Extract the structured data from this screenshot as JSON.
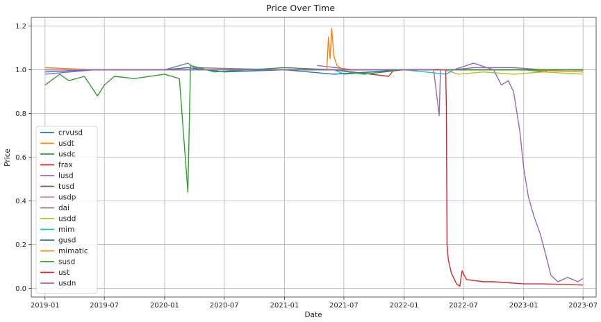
{
  "chart_data": {
    "type": "line",
    "title": "Price Over Time",
    "xlabel": "Date",
    "ylabel": "Price",
    "xlim": [
      "2018-11-20",
      "2023-08-10"
    ],
    "ylim": [
      -0.04,
      1.24
    ],
    "grid": true,
    "legend_position": "center-left",
    "x_ticks": [
      "2019-01",
      "2019-07",
      "2020-01",
      "2020-07",
      "2021-01",
      "2021-07",
      "2022-01",
      "2022-07",
      "2023-01",
      "2023-07"
    ],
    "y_ticks": [
      0.0,
      0.2,
      0.4,
      0.6,
      0.8,
      1.0,
      1.2
    ],
    "series": [
      {
        "name": "crvusd",
        "color": "#1f77b4",
        "points": [
          [
            "2023-05-15",
            1.0
          ],
          [
            "2023-07-01",
            0.999
          ]
        ]
      },
      {
        "name": "usdt",
        "color": "#ff7f0e",
        "points": [
          [
            "2019-01-01",
            1.01
          ],
          [
            "2019-06-01",
            1.0
          ],
          [
            "2020-01-01",
            1.0
          ],
          [
            "2020-06-01",
            1.0
          ],
          [
            "2021-01-01",
            1.0
          ],
          [
            "2021-06-01",
            1.0
          ],
          [
            "2022-01-01",
            1.0
          ],
          [
            "2022-06-01",
            1.0
          ],
          [
            "2023-01-01",
            1.0
          ],
          [
            "2023-07-01",
            1.0
          ]
        ]
      },
      {
        "name": "usdc",
        "color": "#2ca02c",
        "points": [
          [
            "2019-01-01",
            1.0
          ],
          [
            "2020-01-01",
            1.0
          ],
          [
            "2021-01-01",
            1.0
          ],
          [
            "2022-01-01",
            1.0
          ],
          [
            "2023-01-01",
            1.0
          ],
          [
            "2023-03-10",
            0.99
          ],
          [
            "2023-03-15",
            1.0
          ],
          [
            "2023-07-01",
            1.0
          ]
        ]
      },
      {
        "name": "frax",
        "color": "#d62728",
        "points": [
          [
            "2021-01-01",
            1.0
          ],
          [
            "2021-06-01",
            1.0
          ],
          [
            "2021-11-15",
            0.97
          ],
          [
            "2021-12-01",
            1.0
          ],
          [
            "2022-06-01",
            1.0
          ],
          [
            "2023-01-01",
            1.0
          ],
          [
            "2023-07-01",
            0.999
          ]
        ]
      },
      {
        "name": "lusd",
        "color": "#9467bd",
        "points": [
          [
            "2021-04-10",
            1.02
          ],
          [
            "2021-08-01",
            1.0
          ],
          [
            "2022-01-01",
            1.0
          ],
          [
            "2022-06-01",
            1.0
          ],
          [
            "2022-08-01",
            1.01
          ],
          [
            "2022-12-01",
            1.01
          ],
          [
            "2023-03-01",
            1.0
          ],
          [
            "2023-07-01",
            0.999
          ]
        ]
      },
      {
        "name": "tusd",
        "color": "#8c564b",
        "points": [
          [
            "2019-01-01",
            1.0
          ],
          [
            "2020-01-01",
            1.0
          ],
          [
            "2021-01-01",
            1.0
          ],
          [
            "2022-01-01",
            1.0
          ],
          [
            "2023-01-01",
            1.0
          ],
          [
            "2023-07-01",
            1.0
          ]
        ]
      },
      {
        "name": "usdp",
        "color": "#e377c2",
        "points": [
          [
            "2019-01-01",
            1.0
          ],
          [
            "2020-01-01",
            1.0
          ],
          [
            "2021-01-01",
            1.0
          ],
          [
            "2022-01-01",
            1.0
          ],
          [
            "2023-01-01",
            1.0
          ],
          [
            "2023-07-01",
            1.0
          ]
        ]
      },
      {
        "name": "dai",
        "color": "#7f7f7f",
        "points": [
          [
            "2020-01-01",
            1.0
          ],
          [
            "2020-03-12",
            1.03
          ],
          [
            "2020-04-01",
            1.01
          ],
          [
            "2021-01-01",
            1.0
          ],
          [
            "2022-01-01",
            1.0
          ],
          [
            "2023-01-01",
            1.0
          ],
          [
            "2023-07-01",
            1.0
          ]
        ]
      },
      {
        "name": "usdd",
        "color": "#bcbd22",
        "points": [
          [
            "2022-05-05",
            1.0
          ],
          [
            "2022-06-15",
            0.98
          ],
          [
            "2022-09-01",
            0.99
          ],
          [
            "2022-12-01",
            0.98
          ],
          [
            "2023-03-01",
            0.99
          ],
          [
            "2023-07-01",
            0.98
          ]
        ]
      },
      {
        "name": "mim",
        "color": "#17becf",
        "points": [
          [
            "2021-06-01",
            1.0
          ],
          [
            "2021-07-01",
            0.98
          ],
          [
            "2022-01-01",
            1.0
          ],
          [
            "2022-05-10",
            0.98
          ],
          [
            "2022-06-01",
            1.0
          ],
          [
            "2023-01-01",
            1.0
          ],
          [
            "2023-07-01",
            1.0
          ]
        ]
      },
      {
        "name": "gusd",
        "color": "#1f77b4",
        "points": [
          [
            "2019-01-01",
            0.99
          ],
          [
            "2019-06-01",
            1.0
          ],
          [
            "2020-01-01",
            1.0
          ],
          [
            "2020-03-12",
            1.01
          ],
          [
            "2020-07-01",
            0.99
          ],
          [
            "2021-01-01",
            1.0
          ],
          [
            "2021-06-01",
            0.98
          ],
          [
            "2022-01-01",
            1.0
          ],
          [
            "2023-01-01",
            1.0
          ],
          [
            "2023-07-01",
            1.0
          ]
        ]
      },
      {
        "name": "mimatic",
        "color": "#ff7f0e",
        "points": [
          [
            "2021-05-10",
            1.0
          ],
          [
            "2021-05-15",
            1.15
          ],
          [
            "2021-05-20",
            1.05
          ],
          [
            "2021-05-25",
            1.19
          ],
          [
            "2021-06-01",
            1.06
          ],
          [
            "2021-06-10",
            1.02
          ],
          [
            "2021-07-01",
            1.0
          ],
          [
            "2022-01-01",
            1.0
          ],
          [
            "2023-01-01",
            1.0
          ],
          [
            "2023-07-01",
            0.99
          ]
        ]
      },
      {
        "name": "susd",
        "color": "#2ca02c",
        "points": [
          [
            "2019-01-01",
            0.93
          ],
          [
            "2019-02-15",
            0.98
          ],
          [
            "2019-03-15",
            0.95
          ],
          [
            "2019-05-01",
            0.97
          ],
          [
            "2019-06-10",
            0.88
          ],
          [
            "2019-07-01",
            0.93
          ],
          [
            "2019-08-01",
            0.97
          ],
          [
            "2019-10-01",
            0.96
          ],
          [
            "2020-01-01",
            0.98
          ],
          [
            "2020-02-15",
            0.96
          ],
          [
            "2020-03-12",
            0.44
          ],
          [
            "2020-03-20",
            1.02
          ],
          [
            "2020-06-01",
            0.99
          ],
          [
            "2021-01-01",
            1.01
          ],
          [
            "2021-06-01",
            1.0
          ],
          [
            "2021-09-01",
            0.98
          ],
          [
            "2022-01-01",
            1.0
          ],
          [
            "2023-01-01",
            1.0
          ],
          [
            "2023-07-01",
            1.0
          ]
        ]
      },
      {
        "name": "ust",
        "color": "#d62728",
        "points": [
          [
            "2021-01-01",
            1.0
          ],
          [
            "2021-06-01",
            1.0
          ],
          [
            "2022-01-01",
            1.0
          ],
          [
            "2022-05-08",
            1.0
          ],
          [
            "2022-05-10",
            0.82
          ],
          [
            "2022-05-12",
            0.2
          ],
          [
            "2022-05-16",
            0.13
          ],
          [
            "2022-05-25",
            0.07
          ],
          [
            "2022-06-10",
            0.02
          ],
          [
            "2022-06-20",
            0.01
          ],
          [
            "2022-06-27",
            0.08
          ],
          [
            "2022-07-10",
            0.04
          ],
          [
            "2022-09-01",
            0.03
          ],
          [
            "2022-10-01",
            0.03
          ],
          [
            "2023-01-01",
            0.02
          ],
          [
            "2023-03-01",
            0.02
          ],
          [
            "2023-07-01",
            0.015
          ]
        ]
      },
      {
        "name": "usdn",
        "color": "#9467bd",
        "points": [
          [
            "2019-01-01",
            0.98
          ],
          [
            "2019-06-01",
            1.0
          ],
          [
            "2020-01-01",
            1.0
          ],
          [
            "2020-06-01",
            1.0
          ],
          [
            "2021-01-01",
            1.0
          ],
          [
            "2021-06-01",
            1.0
          ],
          [
            "2022-01-01",
            1.0
          ],
          [
            "2022-04-01",
            1.0
          ],
          [
            "2022-04-18",
            0.79
          ],
          [
            "2022-04-22",
            1.0
          ],
          [
            "2022-06-01",
            1.0
          ],
          [
            "2022-08-01",
            1.03
          ],
          [
            "2022-10-01",
            1.0
          ],
          [
            "2022-10-25",
            0.93
          ],
          [
            "2022-11-15",
            0.95
          ],
          [
            "2022-12-01",
            0.9
          ],
          [
            "2022-12-20",
            0.72
          ],
          [
            "2023-01-01",
            0.55
          ],
          [
            "2023-01-15",
            0.42
          ],
          [
            "2023-02-01",
            0.33
          ],
          [
            "2023-02-20",
            0.25
          ],
          [
            "2023-03-10",
            0.15
          ],
          [
            "2023-03-25",
            0.06
          ],
          [
            "2023-04-15",
            0.03
          ],
          [
            "2023-05-15",
            0.05
          ],
          [
            "2023-06-15",
            0.03
          ],
          [
            "2023-07-01",
            0.045
          ]
        ]
      }
    ]
  }
}
